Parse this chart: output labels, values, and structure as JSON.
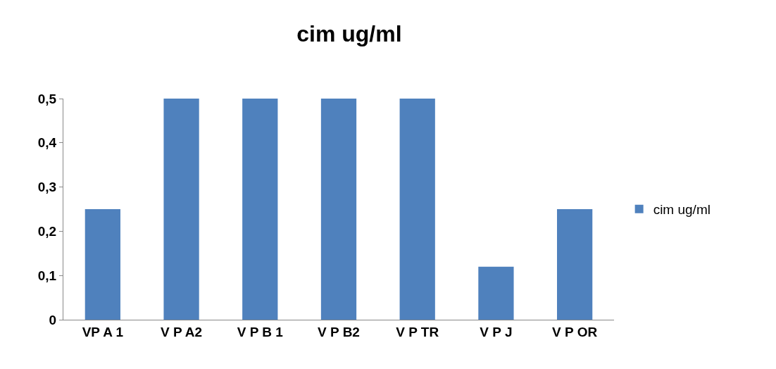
{
  "chart_data": {
    "type": "bar",
    "title": "cim ug/ml",
    "categories": [
      "VP A 1",
      "V P A2",
      "V P B 1",
      "V P B2",
      "V P TR",
      "V P J",
      "V P OR"
    ],
    "series": [
      {
        "name": "cim ug/ml",
        "color": "#4f81bd",
        "values": [
          0.25,
          0.5,
          0.5,
          0.5,
          0.5,
          0.12,
          0.25
        ]
      }
    ],
    "ylim": [
      0,
      0.5
    ],
    "yticks": [
      0,
      {
        "value": 0.1,
        "label": "0,1"
      },
      {
        "value": 0.2,
        "label": "0,2"
      },
      {
        "value": 0.3,
        "label": "0,3"
      },
      {
        "value": 0.4,
        "label": "0,4"
      },
      {
        "value": 0.5,
        "label": "0,5"
      }
    ],
    "grid": false,
    "legend": "right"
  }
}
